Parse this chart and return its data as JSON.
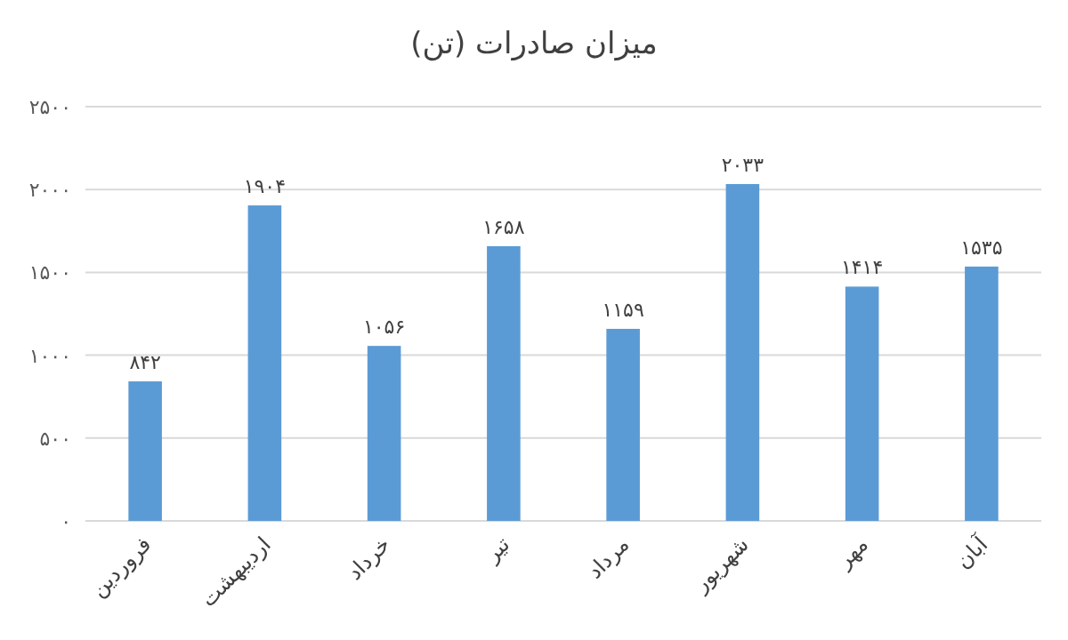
{
  "chart_data": {
    "type": "bar",
    "title": "میزان صادرات (تن)",
    "categories": [
      "فروردین",
      "اردیبهشت",
      "خرداد",
      "تیر",
      "مرداد",
      "شهریور",
      "مهر",
      "آبان"
    ],
    "values": [
      842,
      1904,
      1056,
      1658,
      1159,
      2033,
      1414,
      1535
    ],
    "value_labels": [
      "۸۴۲",
      "۱۹۰۴",
      "۱۰۵۶",
      "۱۶۵۸",
      "۱۱۵۹",
      "۲۰۳۳",
      "۱۴۱۴",
      "۱۵۳۵"
    ],
    "color": "#5b9bd5",
    "ylim": [
      0,
      2500
    ],
    "yticks": [
      {
        "value": 0,
        "label": "۰"
      },
      {
        "value": 500,
        "label": "۵۰۰"
      },
      {
        "value": 1000,
        "label": "۱۰۰۰"
      },
      {
        "value": 1500,
        "label": "۱۵۰۰"
      },
      {
        "value": 2000,
        "label": "۲۰۰۰"
      },
      {
        "value": 2500,
        "label": "۲۵۰۰"
      }
    ],
    "grid": "y"
  }
}
